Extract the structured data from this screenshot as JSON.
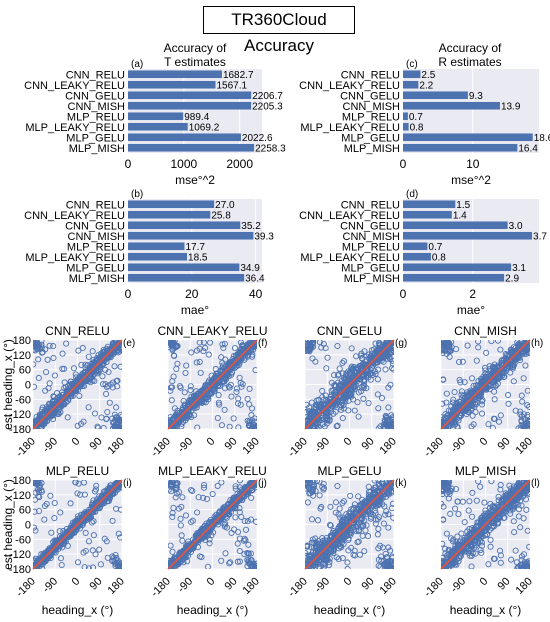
{
  "title": "TR360Cloud Accuracy",
  "bar_titles": {
    "t": "Accuracy of\nT estimates",
    "r": "Accuracy of\nR estimates"
  },
  "scatter_xlabel": "heading_x (°)",
  "scatter_ylabel": "est heading_x (°)",
  "colors": {
    "bar": "#4c72b0",
    "panel_bg": "#eaeaf2",
    "grid": "#ffffff",
    "scatter": "#4c72b0",
    "diagonal": "#e8533b"
  },
  "chart_data": [
    {
      "id": "a",
      "type": "bar",
      "orientation": "horizontal",
      "panel_label": "(a)",
      "categories": [
        "CNN_RELU",
        "CNN_LEAKY_RELU",
        "CNN_GELU",
        "CNN_MISH",
        "MLP_RELU",
        "MLP_LEAKY_RELU",
        "MLP_GELU",
        "MLP_MISH"
      ],
      "values": [
        1682.7,
        1567.1,
        2206.7,
        2205.3,
        989.4,
        1069.2,
        2022.6,
        2258.3
      ],
      "value_labels": [
        "1682.7",
        "1567.1",
        "2206.7",
        "2205.3",
        "989.4",
        "1069.2",
        "2022.6",
        "2258.3"
      ],
      "xlabel": "mse°^2",
      "xlim": [
        0,
        2400
      ],
      "xticks": [
        0,
        1000,
        2000
      ],
      "xtick_labels": [
        "0",
        "1000",
        "2000"
      ],
      "grid": true
    },
    {
      "id": "b",
      "type": "bar",
      "orientation": "horizontal",
      "panel_label": "(b)",
      "categories": [
        "CNN_RELU",
        "CNN_LEAKY_RELU",
        "CNN_GELU",
        "CNN_MISH",
        "MLP_RELU",
        "MLP_LEAKY_RELU",
        "MLP_GELU",
        "MLP_MISH"
      ],
      "values": [
        27.0,
        25.8,
        35.2,
        39.3,
        17.7,
        18.5,
        34.9,
        36.4
      ],
      "value_labels": [
        "27.0",
        "25.8",
        "35.2",
        "39.3",
        "17.7",
        "18.5",
        "34.9",
        "36.4"
      ],
      "xlabel": "mae°",
      "xlim": [
        0,
        42
      ],
      "xticks": [
        0,
        20,
        40
      ],
      "xtick_labels": [
        "0",
        "20",
        "40"
      ],
      "grid": true
    },
    {
      "id": "c",
      "type": "bar",
      "orientation": "horizontal",
      "panel_label": "(c)",
      "categories": [
        "CNN_RELU",
        "CNN_LEAKY_RELU",
        "CNN_GELU",
        "CNN_MISH",
        "MLP_RELU",
        "MLP_LEAKY_RELU",
        "MLP_GELU",
        "MLP_MISH"
      ],
      "values": [
        2.5,
        2.2,
        9.3,
        13.9,
        0.7,
        0.8,
        18.6,
        16.4
      ],
      "value_labels": [
        "2.5",
        "2.2",
        "9.3",
        "13.9",
        "0.7",
        "0.8",
        "18.6",
        "16.4"
      ],
      "xlabel": "mse°^2",
      "xlim": [
        0,
        19.5
      ],
      "xticks": [
        0,
        10
      ],
      "xtick_labels": [
        "0",
        "10"
      ],
      "grid": true
    },
    {
      "id": "d",
      "type": "bar",
      "orientation": "horizontal",
      "panel_label": "(d)",
      "categories": [
        "CNN_RELU",
        "CNN_LEAKY_RELU",
        "CNN_GELU",
        "CNN_MISH",
        "MLP_RELU",
        "MLP_LEAKY_RELU",
        "MLP_GELU",
        "MLP_MISH"
      ],
      "values": [
        1.5,
        1.4,
        3.0,
        3.7,
        0.7,
        0.8,
        3.1,
        2.9
      ],
      "value_labels": [
        "1.5",
        "1.4",
        "3.0",
        "3.7",
        "0.7",
        "0.8",
        "3.1",
        "2.9"
      ],
      "xlabel": "mae°",
      "xlim": [
        0,
        3.9
      ],
      "xticks": [
        0,
        2
      ],
      "xtick_labels": [
        "0",
        "2"
      ],
      "grid": true
    },
    {
      "id": "e",
      "type": "scatter",
      "title": "CNN_RELU",
      "panel_label": "(e)",
      "xlim": [
        -180,
        180
      ],
      "ylim": [
        -180,
        180
      ],
      "xticks": [
        -180,
        -90,
        0,
        90,
        180
      ],
      "yticks": [
        -180,
        -120,
        -60,
        0,
        60,
        120,
        180
      ],
      "note": "dense points around y=x diagonal, reference line y=x"
    },
    {
      "id": "f",
      "type": "scatter",
      "title": "CNN_LEAKY_RELU",
      "panel_label": "(f)",
      "xlim": [
        -180,
        180
      ],
      "ylim": [
        -180,
        180
      ],
      "xticks": [
        -180,
        -90,
        0,
        90,
        180
      ],
      "yticks": [
        -180,
        -120,
        -60,
        0,
        60,
        120,
        180
      ]
    },
    {
      "id": "g",
      "type": "scatter",
      "title": "CNN_GELU",
      "panel_label": "(g)",
      "xlim": [
        -180,
        180
      ],
      "ylim": [
        -180,
        180
      ],
      "xticks": [
        -180,
        -90,
        0,
        90,
        180
      ],
      "yticks": [
        -180,
        -120,
        -60,
        0,
        60,
        120,
        180
      ]
    },
    {
      "id": "h",
      "type": "scatter",
      "title": "CNN_MISH",
      "panel_label": "(h)",
      "xlim": [
        -180,
        180
      ],
      "ylim": [
        -180,
        180
      ],
      "xticks": [
        -180,
        -90,
        0,
        90,
        180
      ],
      "yticks": [
        -180,
        -120,
        -60,
        0,
        60,
        120,
        180
      ]
    },
    {
      "id": "i",
      "type": "scatter",
      "title": "MLP_RELU",
      "panel_label": "(i)",
      "xlim": [
        -180,
        180
      ],
      "ylim": [
        -180,
        180
      ],
      "xticks": [
        -180,
        -90,
        0,
        90,
        180
      ],
      "yticks": [
        -180,
        -120,
        -60,
        0,
        60,
        120,
        180
      ]
    },
    {
      "id": "j",
      "type": "scatter",
      "title": "MLP_LEAKY_RELU",
      "panel_label": "(j)",
      "xlim": [
        -180,
        180
      ],
      "ylim": [
        -180,
        180
      ],
      "xticks": [
        -180,
        -90,
        0,
        90,
        180
      ],
      "yticks": [
        -180,
        -120,
        -60,
        0,
        60,
        120,
        180
      ]
    },
    {
      "id": "k",
      "type": "scatter",
      "title": "MLP_GELU",
      "panel_label": "(k)",
      "xlim": [
        -180,
        180
      ],
      "ylim": [
        -180,
        180
      ],
      "xticks": [
        -180,
        -90,
        0,
        90,
        180
      ],
      "yticks": [
        -180,
        -120,
        -60,
        0,
        60,
        120,
        180
      ]
    },
    {
      "id": "l",
      "type": "scatter",
      "title": "MLP_MISH",
      "panel_label": "(l)",
      "xlim": [
        -180,
        180
      ],
      "ylim": [
        -180,
        180
      ],
      "xticks": [
        -180,
        -90,
        0,
        90,
        180
      ],
      "yticks": [
        -180,
        -120,
        -60,
        0,
        60,
        120,
        180
      ]
    }
  ],
  "scatter_spread": {
    "e": 18,
    "f": 17,
    "g": 32,
    "h": 24,
    "i": 11,
    "j": 12,
    "k": 30,
    "l": 26
  },
  "scatter_outlier_fraction": {
    "e": 0.12,
    "f": 0.14,
    "g": 0.1,
    "h": 0.09,
    "i": 0.12,
    "j": 0.14,
    "k": 0.15,
    "l": 0.12
  }
}
